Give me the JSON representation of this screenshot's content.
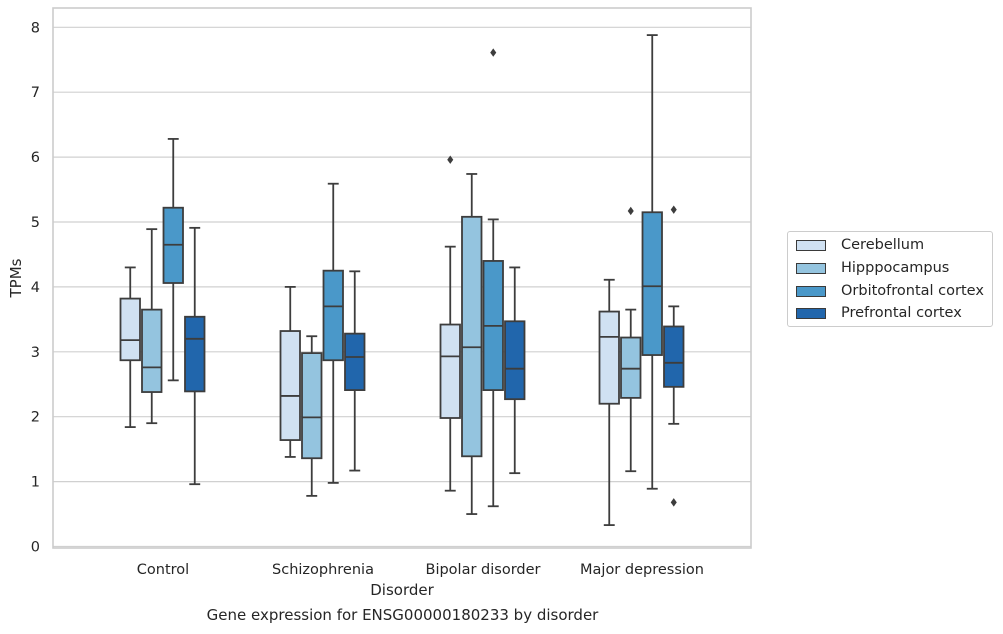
{
  "caption": "Gene expression for ENSG00000180233 by disorder",
  "chart_data": {
    "type": "box",
    "xlabel": "Disorder",
    "ylabel": "TPMs",
    "ylim": [
      0,
      8
    ],
    "yticks": [
      0,
      1,
      2,
      3,
      4,
      5,
      6,
      7,
      8
    ],
    "grid": true,
    "legend_position": "right",
    "categories": [
      "Control",
      "Schizophrenia",
      "Bipolar disorder",
      "Major depression"
    ],
    "series": [
      {
        "name": "Cerebellum",
        "color": "#d0e1f2",
        "boxes": [
          {
            "min": 1.84,
            "q1": 2.87,
            "median": 3.18,
            "q3": 3.82,
            "max": 4.3,
            "outliers": []
          },
          {
            "min": 1.38,
            "q1": 1.64,
            "median": 2.32,
            "q3": 3.32,
            "max": 4.0,
            "outliers": []
          },
          {
            "min": 0.86,
            "q1": 1.98,
            "median": 2.93,
            "q3": 3.42,
            "max": 4.62,
            "outliers": [
              5.96
            ]
          },
          {
            "min": 0.33,
            "q1": 2.2,
            "median": 3.23,
            "q3": 3.62,
            "max": 4.11,
            "outliers": []
          }
        ]
      },
      {
        "name": "Hipppocampus",
        "color": "#94c4df",
        "boxes": [
          {
            "min": 1.9,
            "q1": 2.38,
            "median": 2.76,
            "q3": 3.65,
            "max": 4.89,
            "outliers": []
          },
          {
            "min": 0.78,
            "q1": 1.36,
            "median": 1.99,
            "q3": 2.98,
            "max": 3.24,
            "outliers": []
          },
          {
            "min": 0.5,
            "q1": 1.39,
            "median": 3.07,
            "q3": 5.08,
            "max": 5.74,
            "outliers": []
          },
          {
            "min": 1.16,
            "q1": 2.29,
            "median": 2.74,
            "q3": 3.22,
            "max": 3.65,
            "outliers": [
              5.17
            ]
          }
        ]
      },
      {
        "name": "Orbitofrontal cortex",
        "color": "#4a98c9",
        "boxes": [
          {
            "min": 2.56,
            "q1": 4.06,
            "median": 4.65,
            "q3": 5.22,
            "max": 6.28,
            "outliers": []
          },
          {
            "min": 0.98,
            "q1": 2.87,
            "median": 3.7,
            "q3": 4.25,
            "max": 5.59,
            "outliers": []
          },
          {
            "min": 0.62,
            "q1": 2.41,
            "median": 3.4,
            "q3": 4.4,
            "max": 5.04,
            "outliers": [
              7.61
            ]
          },
          {
            "min": 0.89,
            "q1": 2.95,
            "median": 4.01,
            "q3": 5.15,
            "max": 7.88,
            "outliers": []
          }
        ]
      },
      {
        "name": "Prefrontal cortex",
        "color": "#2166ac",
        "boxes": [
          {
            "min": 0.96,
            "q1": 2.39,
            "median": 3.2,
            "q3": 3.54,
            "max": 4.91,
            "outliers": []
          },
          {
            "min": 1.17,
            "q1": 2.41,
            "median": 2.92,
            "q3": 3.28,
            "max": 4.24,
            "outliers": []
          },
          {
            "min": 1.13,
            "q1": 2.27,
            "median": 2.74,
            "q3": 3.47,
            "max": 4.3,
            "outliers": []
          },
          {
            "min": 1.89,
            "q1": 2.46,
            "median": 2.83,
            "q3": 3.39,
            "max": 3.7,
            "outliers": [
              5.19,
              0.68
            ]
          }
        ]
      }
    ]
  }
}
